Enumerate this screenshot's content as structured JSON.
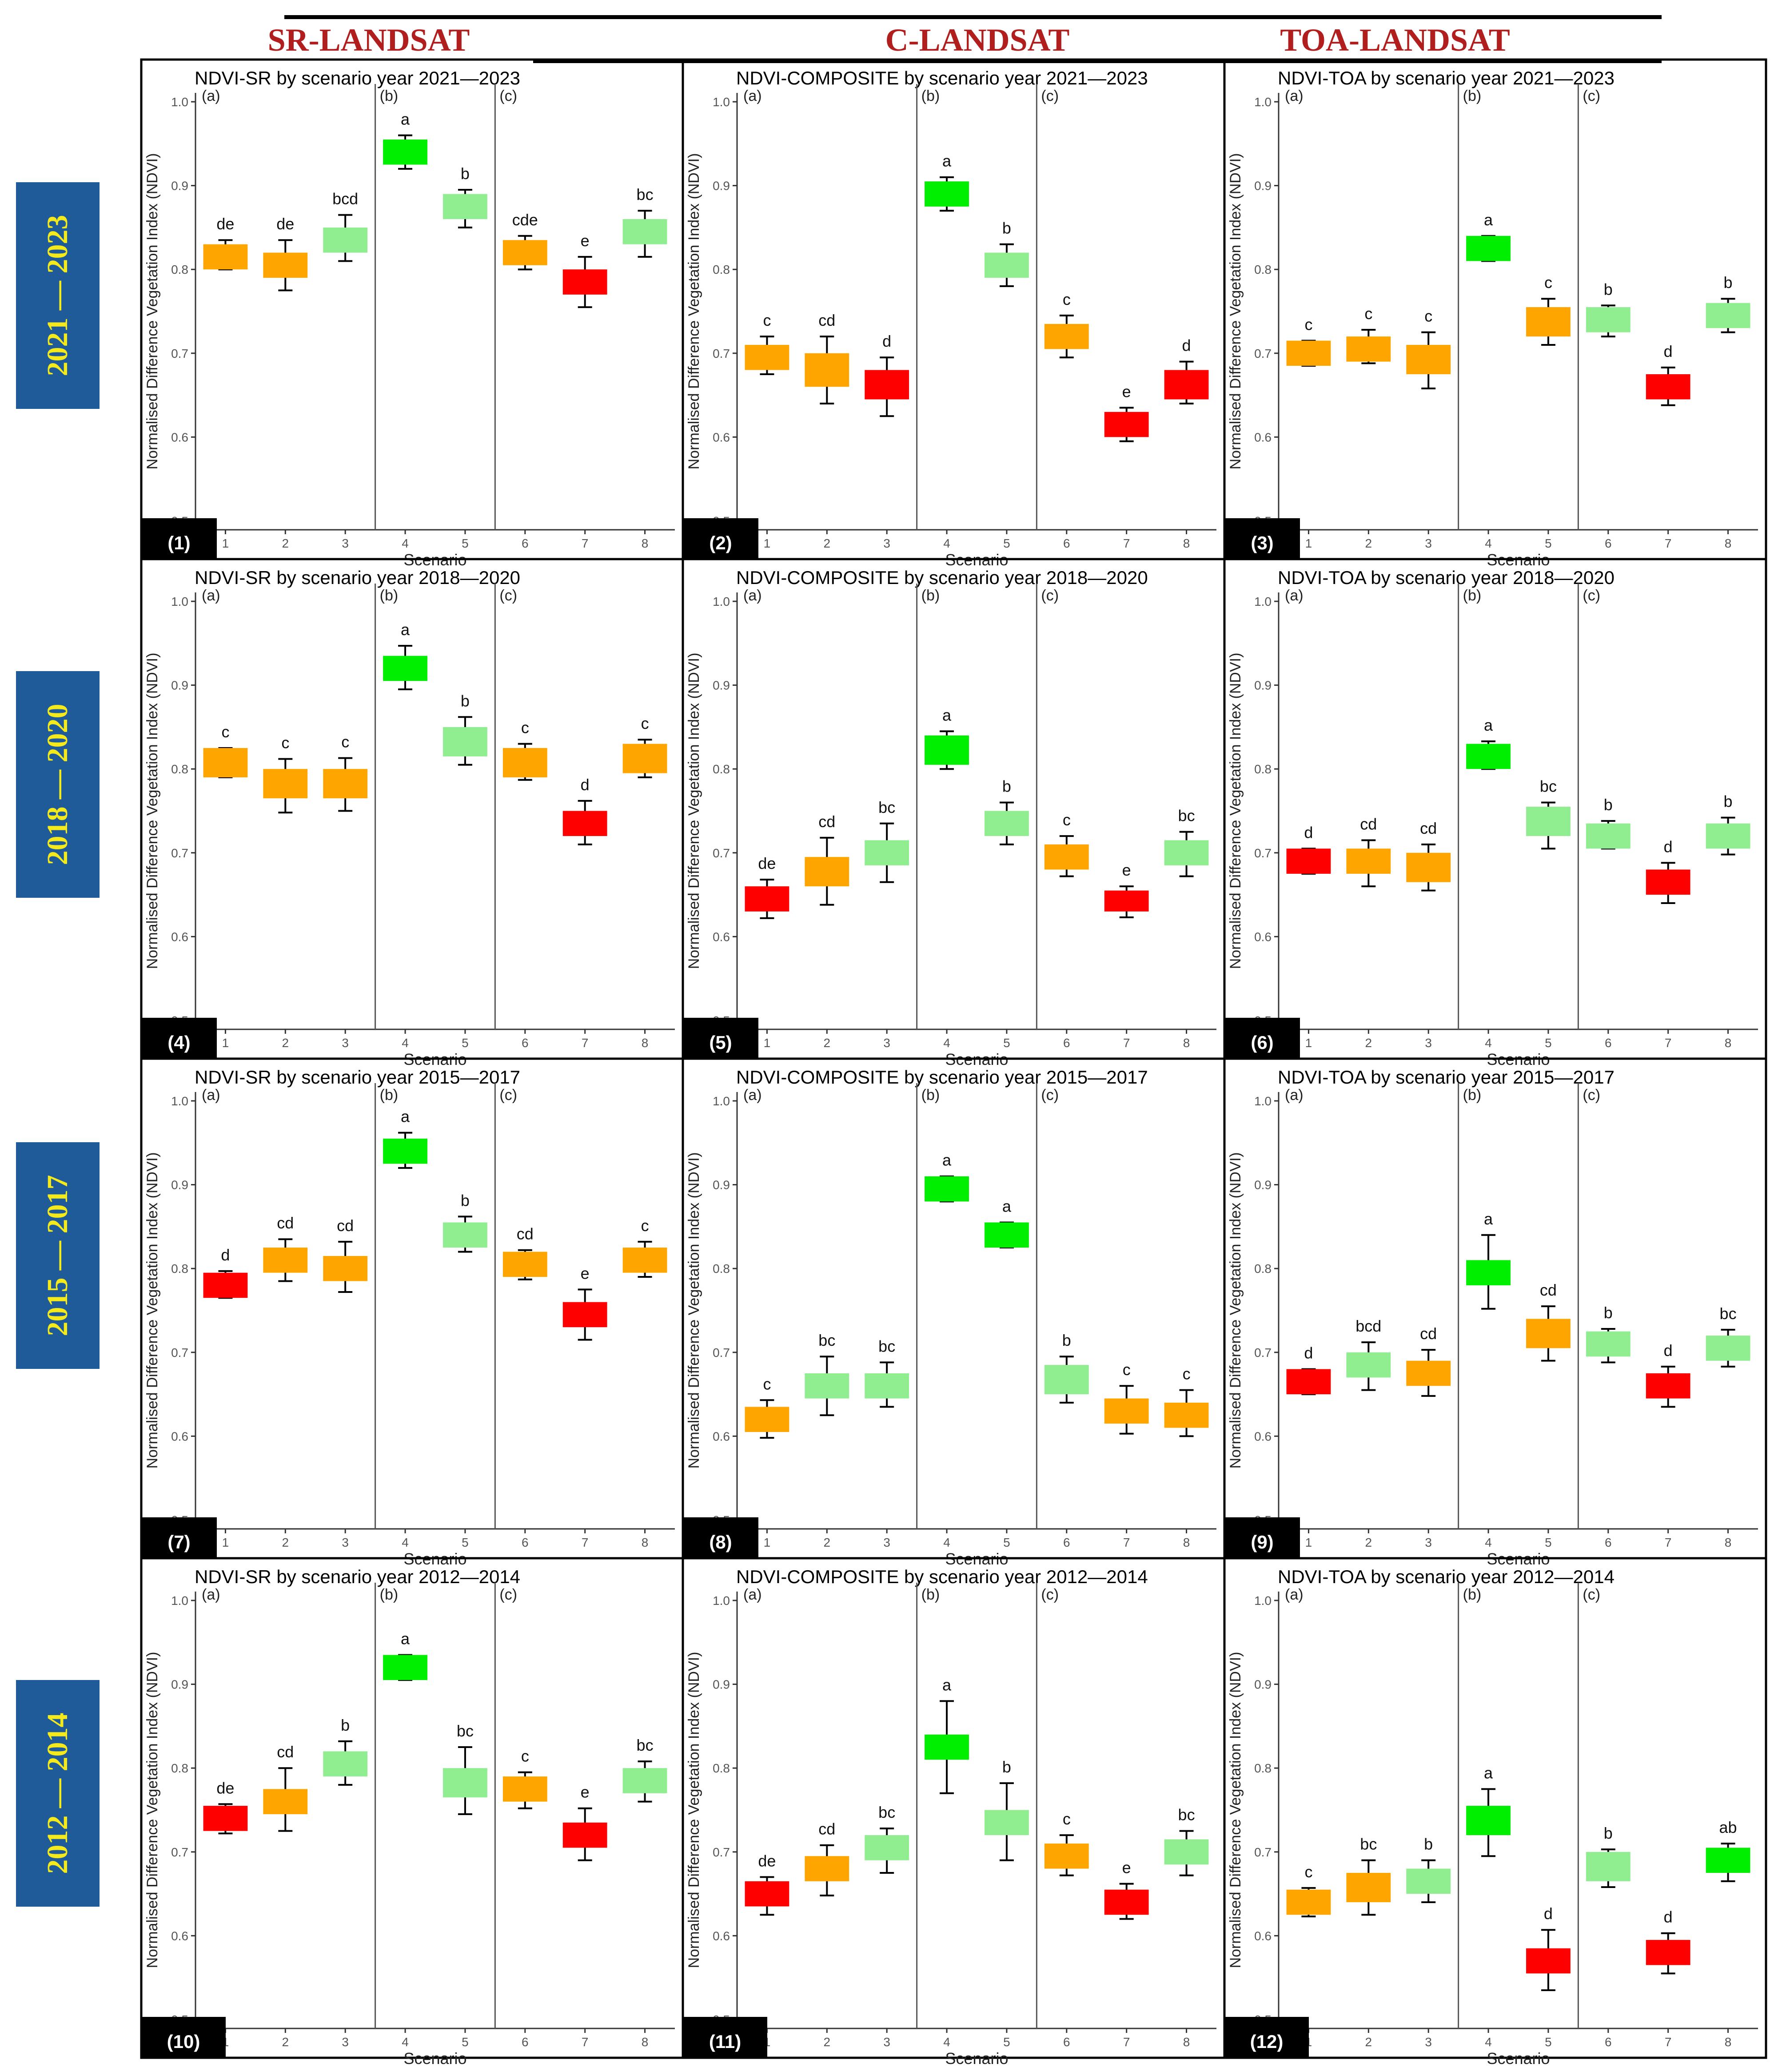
{
  "column_headers": [
    "SR-LANDSAT",
    "C-LANDSAT",
    "TOA-LANDSAT"
  ],
  "row_headers": [
    "2021 — 2023",
    "2018 — 2020",
    "2015 — 2017",
    "2012 — 2014"
  ],
  "colors": {
    "orange": "#ffa500",
    "red": "#ff0000",
    "light-green": "#90ee90",
    "green": "#00ee00"
  },
  "chart_data": [
    {
      "type": "box",
      "panel": "(1)",
      "title": "NDVI-SR by scenario year 2021—2023",
      "xlabel": "Scenario",
      "ylabel": "Normalised Difference Vegetation Index (NDVI)",
      "ylim": [
        0.5,
        1.0
      ],
      "yticks": [
        0.5,
        0.6,
        0.7,
        0.8,
        0.9,
        1.0
      ],
      "categories": [
        "1",
        "2",
        "3",
        "4",
        "5",
        "6",
        "7",
        "8"
      ],
      "groups": [
        "(a)",
        "(b)",
        "(c)"
      ],
      "q1": [
        0.8,
        0.79,
        0.82,
        0.925,
        0.86,
        0.805,
        0.77,
        0.83
      ],
      "q3": [
        0.83,
        0.82,
        0.85,
        0.955,
        0.89,
        0.835,
        0.8,
        0.86
      ],
      "whisker_low": [
        0.8,
        0.775,
        0.81,
        0.92,
        0.85,
        0.8,
        0.755,
        0.815
      ],
      "whisker_high": [
        0.835,
        0.835,
        0.865,
        0.96,
        0.895,
        0.84,
        0.815,
        0.87
      ],
      "letters": [
        "de",
        "de",
        "bcd",
        "a",
        "b",
        "cde",
        "e",
        "bc"
      ],
      "colors": [
        "orange",
        "orange",
        "light-green",
        "green",
        "light-green",
        "orange",
        "red",
        "light-green"
      ]
    },
    {
      "type": "box",
      "panel": "(2)",
      "title": "NDVI-COMPOSITE by scenario year 2021—2023",
      "xlabel": "Scenario",
      "ylabel": "Normalised Difference Vegetation Index (NDVI)",
      "ylim": [
        0.5,
        1.0
      ],
      "yticks": [
        0.5,
        0.6,
        0.7,
        0.8,
        0.9,
        1.0
      ],
      "categories": [
        "1",
        "2",
        "3",
        "4",
        "5",
        "6",
        "7",
        "8"
      ],
      "groups": [
        "(a)",
        "(b)",
        "(c)"
      ],
      "q1": [
        0.68,
        0.66,
        0.645,
        0.875,
        0.79,
        0.705,
        0.6,
        0.645
      ],
      "q3": [
        0.71,
        0.7,
        0.68,
        0.905,
        0.82,
        0.735,
        0.63,
        0.68
      ],
      "whisker_low": [
        0.675,
        0.64,
        0.625,
        0.87,
        0.78,
        0.695,
        0.595,
        0.64
      ],
      "whisker_high": [
        0.72,
        0.72,
        0.695,
        0.91,
        0.83,
        0.745,
        0.635,
        0.69
      ],
      "letters": [
        "c",
        "cd",
        "d",
        "a",
        "b",
        "c",
        "e",
        "d"
      ],
      "colors": [
        "orange",
        "orange",
        "red",
        "green",
        "light-green",
        "orange",
        "red",
        "red"
      ]
    },
    {
      "type": "box",
      "panel": "(3)",
      "title": "NDVI-TOA by scenario year 2021—2023",
      "xlabel": "Scenario",
      "ylabel": "Normalised Difference Vegetation Index (NDVI)",
      "ylim": [
        0.5,
        1.0
      ],
      "yticks": [
        0.5,
        0.6,
        0.7,
        0.8,
        0.9,
        1.0
      ],
      "categories": [
        "1",
        "2",
        "3",
        "4",
        "5",
        "6",
        "7",
        "8"
      ],
      "groups": [
        "(a)",
        "(b)",
        "(c)"
      ],
      "q1": [
        0.685,
        0.69,
        0.675,
        0.81,
        0.72,
        0.725,
        0.645,
        0.73
      ],
      "q3": [
        0.715,
        0.72,
        0.71,
        0.84,
        0.755,
        0.755,
        0.675,
        0.76
      ],
      "whisker_low": [
        0.685,
        0.688,
        0.658,
        0.81,
        0.71,
        0.72,
        0.638,
        0.725
      ],
      "whisker_high": [
        0.715,
        0.728,
        0.725,
        0.84,
        0.765,
        0.757,
        0.683,
        0.765
      ],
      "letters": [
        "c",
        "c",
        "c",
        "a",
        "c",
        "b",
        "d",
        "b"
      ],
      "colors": [
        "orange",
        "orange",
        "orange",
        "green",
        "orange",
        "light-green",
        "red",
        "light-green"
      ]
    },
    {
      "type": "box",
      "panel": "(4)",
      "title": "NDVI-SR by scenario year 2018—2020",
      "xlabel": "Scenario",
      "ylabel": "Normalised Difference Vegetation Index (NDVI)",
      "ylim": [
        0.5,
        1.0
      ],
      "yticks": [
        0.5,
        0.6,
        0.7,
        0.8,
        0.9,
        1.0
      ],
      "categories": [
        "1",
        "2",
        "3",
        "4",
        "5",
        "6",
        "7",
        "8"
      ],
      "groups": [
        "(a)",
        "(b)",
        "(c)"
      ],
      "q1": [
        0.79,
        0.765,
        0.765,
        0.905,
        0.815,
        0.79,
        0.72,
        0.795
      ],
      "q3": [
        0.825,
        0.8,
        0.8,
        0.935,
        0.85,
        0.825,
        0.75,
        0.83
      ],
      "whisker_low": [
        0.79,
        0.748,
        0.75,
        0.895,
        0.805,
        0.787,
        0.71,
        0.79
      ],
      "whisker_high": [
        0.825,
        0.812,
        0.813,
        0.947,
        0.862,
        0.83,
        0.762,
        0.835
      ],
      "letters": [
        "c",
        "c",
        "c",
        "a",
        "b",
        "c",
        "d",
        "c"
      ],
      "colors": [
        "orange",
        "orange",
        "orange",
        "green",
        "light-green",
        "orange",
        "red",
        "orange"
      ]
    },
    {
      "type": "box",
      "panel": "(5)",
      "title": "NDVI-COMPOSITE by scenario year 2018—2020",
      "xlabel": "Scenario",
      "ylabel": "Normalised Difference Vegetation Index (NDVI)",
      "ylim": [
        0.5,
        1.0
      ],
      "yticks": [
        0.5,
        0.6,
        0.7,
        0.8,
        0.9,
        1.0
      ],
      "categories": [
        "1",
        "2",
        "3",
        "4",
        "5",
        "6",
        "7",
        "8"
      ],
      "groups": [
        "(a)",
        "(b)",
        "(c)"
      ],
      "q1": [
        0.63,
        0.66,
        0.685,
        0.805,
        0.72,
        0.68,
        0.63,
        0.685
      ],
      "q3": [
        0.66,
        0.695,
        0.715,
        0.84,
        0.75,
        0.71,
        0.655,
        0.715
      ],
      "whisker_low": [
        0.622,
        0.638,
        0.665,
        0.8,
        0.71,
        0.672,
        0.623,
        0.672
      ],
      "whisker_high": [
        0.668,
        0.718,
        0.735,
        0.845,
        0.76,
        0.72,
        0.66,
        0.725
      ],
      "letters": [
        "de",
        "cd",
        "bc",
        "a",
        "b",
        "c",
        "e",
        "bc"
      ],
      "colors": [
        "red",
        "orange",
        "light-green",
        "green",
        "light-green",
        "orange",
        "red",
        "light-green"
      ]
    },
    {
      "type": "box",
      "panel": "(6)",
      "title": "NDVI-TOA by scenario year 2018—2020",
      "xlabel": "Scenario",
      "ylabel": "Normalised Difference Vegetation Index (NDVI)",
      "ylim": [
        0.5,
        1.0
      ],
      "yticks": [
        0.5,
        0.6,
        0.7,
        0.8,
        0.9,
        1.0
      ],
      "categories": [
        "1",
        "2",
        "3",
        "4",
        "5",
        "6",
        "7",
        "8"
      ],
      "groups": [
        "(a)",
        "(b)",
        "(c)"
      ],
      "q1": [
        0.675,
        0.675,
        0.665,
        0.8,
        0.72,
        0.705,
        0.65,
        0.705
      ],
      "q3": [
        0.705,
        0.705,
        0.7,
        0.83,
        0.755,
        0.735,
        0.68,
        0.735
      ],
      "whisker_low": [
        0.675,
        0.66,
        0.655,
        0.8,
        0.705,
        0.705,
        0.64,
        0.698
      ],
      "whisker_high": [
        0.705,
        0.715,
        0.71,
        0.833,
        0.76,
        0.738,
        0.688,
        0.742
      ],
      "letters": [
        "d",
        "cd",
        "cd",
        "a",
        "bc",
        "b",
        "d",
        "b"
      ],
      "colors": [
        "red",
        "orange",
        "orange",
        "green",
        "light-green",
        "light-green",
        "red",
        "light-green"
      ]
    },
    {
      "type": "box",
      "panel": "(7)",
      "title": "NDVI-SR by scenario year 2015—2017",
      "xlabel": "Scenario",
      "ylabel": "Normalised Difference Vegetation Index (NDVI)",
      "ylim": [
        0.5,
        1.0
      ],
      "yticks": [
        0.5,
        0.6,
        0.7,
        0.8,
        0.9,
        1.0
      ],
      "categories": [
        "1",
        "2",
        "3",
        "4",
        "5",
        "6",
        "7",
        "8"
      ],
      "groups": [
        "(a)",
        "(b)",
        "(c)"
      ],
      "q1": [
        0.765,
        0.795,
        0.785,
        0.925,
        0.825,
        0.79,
        0.73,
        0.795
      ],
      "q3": [
        0.795,
        0.825,
        0.815,
        0.955,
        0.855,
        0.82,
        0.76,
        0.825
      ],
      "whisker_low": [
        0.765,
        0.785,
        0.772,
        0.92,
        0.82,
        0.787,
        0.715,
        0.79
      ],
      "whisker_high": [
        0.797,
        0.835,
        0.832,
        0.962,
        0.862,
        0.822,
        0.775,
        0.832
      ],
      "letters": [
        "d",
        "cd",
        "cd",
        "a",
        "b",
        "cd",
        "e",
        "c"
      ],
      "colors": [
        "red",
        "orange",
        "orange",
        "green",
        "light-green",
        "orange",
        "red",
        "orange"
      ]
    },
    {
      "type": "box",
      "panel": "(8)",
      "title": "NDVI-COMPOSITE by scenario year 2015—2017",
      "xlabel": "Scenario",
      "ylabel": "Normalised Difference Vegetation Index (NDVI)",
      "ylim": [
        0.5,
        1.0
      ],
      "yticks": [
        0.5,
        0.6,
        0.7,
        0.8,
        0.9,
        1.0
      ],
      "categories": [
        "1",
        "2",
        "3",
        "4",
        "5",
        "6",
        "7",
        "8"
      ],
      "groups": [
        "(a)",
        "(b)",
        "(c)"
      ],
      "q1": [
        0.605,
        0.645,
        0.645,
        0.88,
        0.825,
        0.65,
        0.615,
        0.61
      ],
      "q3": [
        0.635,
        0.675,
        0.675,
        0.91,
        0.855,
        0.685,
        0.645,
        0.64
      ],
      "whisker_low": [
        0.598,
        0.625,
        0.635,
        0.88,
        0.825,
        0.64,
        0.603,
        0.6
      ],
      "whisker_high": [
        0.643,
        0.695,
        0.688,
        0.91,
        0.855,
        0.695,
        0.66,
        0.655
      ],
      "letters": [
        "c",
        "bc",
        "bc",
        "a",
        "a",
        "b",
        "c",
        "c"
      ],
      "colors": [
        "orange",
        "light-green",
        "light-green",
        "green",
        "green",
        "light-green",
        "orange",
        "orange"
      ]
    },
    {
      "type": "box",
      "panel": "(9)",
      "title": "NDVI-TOA by scenario year 2015—2017",
      "xlabel": "Scenario",
      "ylabel": "Normalised Difference Vegetation Index (NDVI)",
      "ylim": [
        0.5,
        1.0
      ],
      "yticks": [
        0.5,
        0.6,
        0.7,
        0.8,
        0.9,
        1.0
      ],
      "categories": [
        "1",
        "2",
        "3",
        "4",
        "5",
        "6",
        "7",
        "8"
      ],
      "groups": [
        "(a)",
        "(b)",
        "(c)"
      ],
      "q1": [
        0.65,
        0.67,
        0.66,
        0.78,
        0.705,
        0.695,
        0.645,
        0.69
      ],
      "q3": [
        0.68,
        0.7,
        0.69,
        0.81,
        0.74,
        0.725,
        0.675,
        0.72
      ],
      "whisker_low": [
        0.65,
        0.655,
        0.648,
        0.752,
        0.69,
        0.688,
        0.635,
        0.683
      ],
      "whisker_high": [
        0.68,
        0.712,
        0.703,
        0.84,
        0.755,
        0.728,
        0.683,
        0.727
      ],
      "letters": [
        "d",
        "bcd",
        "cd",
        "a",
        "cd",
        "b",
        "d",
        "bc"
      ],
      "colors": [
        "red",
        "light-green",
        "orange",
        "green",
        "orange",
        "light-green",
        "red",
        "light-green"
      ]
    },
    {
      "type": "box",
      "panel": "(10)",
      "title": "NDVI-SR by scenario year 2012—2014",
      "xlabel": "Scenario",
      "ylabel": "Normalised Difference Vegetation Index (NDVI)",
      "ylim": [
        0.5,
        1.0
      ],
      "yticks": [
        0.5,
        0.6,
        0.7,
        0.8,
        0.9,
        1.0
      ],
      "categories": [
        "1",
        "2",
        "3",
        "4",
        "5",
        "6",
        "7",
        "8"
      ],
      "groups": [
        "(a)",
        "(b)",
        "(c)"
      ],
      "q1": [
        0.725,
        0.745,
        0.79,
        0.905,
        0.765,
        0.76,
        0.705,
        0.77
      ],
      "q3": [
        0.755,
        0.775,
        0.82,
        0.935,
        0.8,
        0.79,
        0.735,
        0.8
      ],
      "whisker_low": [
        0.722,
        0.725,
        0.78,
        0.905,
        0.745,
        0.752,
        0.69,
        0.76
      ],
      "whisker_high": [
        0.757,
        0.8,
        0.832,
        0.935,
        0.825,
        0.795,
        0.752,
        0.808
      ],
      "letters": [
        "de",
        "cd",
        "b",
        "a",
        "bc",
        "c",
        "e",
        "bc"
      ],
      "colors": [
        "red",
        "orange",
        "light-green",
        "green",
        "light-green",
        "orange",
        "red",
        "light-green"
      ]
    },
    {
      "type": "box",
      "panel": "(11)",
      "title": "NDVI-COMPOSITE by scenario year 2012—2014",
      "xlabel": "Scenario",
      "ylabel": "Normalised Difference Vegetation Index (NDVI)",
      "ylim": [
        0.5,
        1.0
      ],
      "yticks": [
        0.5,
        0.6,
        0.7,
        0.8,
        0.9,
        1.0
      ],
      "categories": [
        "1",
        "2",
        "3",
        "4",
        "5",
        "6",
        "7",
        "8"
      ],
      "groups": [
        "(a)",
        "(b)",
        "(c)"
      ],
      "q1": [
        0.635,
        0.665,
        0.69,
        0.81,
        0.72,
        0.68,
        0.625,
        0.685
      ],
      "q3": [
        0.665,
        0.695,
        0.72,
        0.84,
        0.75,
        0.71,
        0.655,
        0.715
      ],
      "whisker_low": [
        0.625,
        0.648,
        0.675,
        0.77,
        0.69,
        0.672,
        0.62,
        0.672
      ],
      "whisker_high": [
        0.67,
        0.708,
        0.728,
        0.88,
        0.782,
        0.72,
        0.662,
        0.725
      ],
      "letters": [
        "de",
        "cd",
        "bc",
        "a",
        "b",
        "c",
        "e",
        "bc"
      ],
      "colors": [
        "red",
        "orange",
        "light-green",
        "green",
        "light-green",
        "orange",
        "red",
        "light-green"
      ]
    },
    {
      "type": "box",
      "panel": "(12)",
      "title": "NDVI-TOA by scenario year 2012—2014",
      "xlabel": "Scenario",
      "ylabel": "Normalised Difference Vegetation Index (NDVI)",
      "ylim": [
        0.5,
        1.0
      ],
      "yticks": [
        0.5,
        0.6,
        0.7,
        0.8,
        0.9,
        1.0
      ],
      "categories": [
        "1",
        "2",
        "3",
        "4",
        "5",
        "6",
        "7",
        "8"
      ],
      "groups": [
        "(a)",
        "(b)",
        "(c)"
      ],
      "q1": [
        0.625,
        0.64,
        0.65,
        0.72,
        0.555,
        0.665,
        0.565,
        0.675
      ],
      "q3": [
        0.655,
        0.675,
        0.68,
        0.755,
        0.585,
        0.7,
        0.595,
        0.705
      ],
      "whisker_low": [
        0.623,
        0.625,
        0.64,
        0.695,
        0.535,
        0.658,
        0.555,
        0.665
      ],
      "whisker_high": [
        0.657,
        0.69,
        0.69,
        0.775,
        0.607,
        0.703,
        0.603,
        0.71
      ],
      "letters": [
        "c",
        "bc",
        "b",
        "a",
        "d",
        "b",
        "d",
        "ab"
      ],
      "colors": [
        "orange",
        "orange",
        "light-green",
        "green",
        "red",
        "light-green",
        "red",
        "green"
      ]
    }
  ]
}
